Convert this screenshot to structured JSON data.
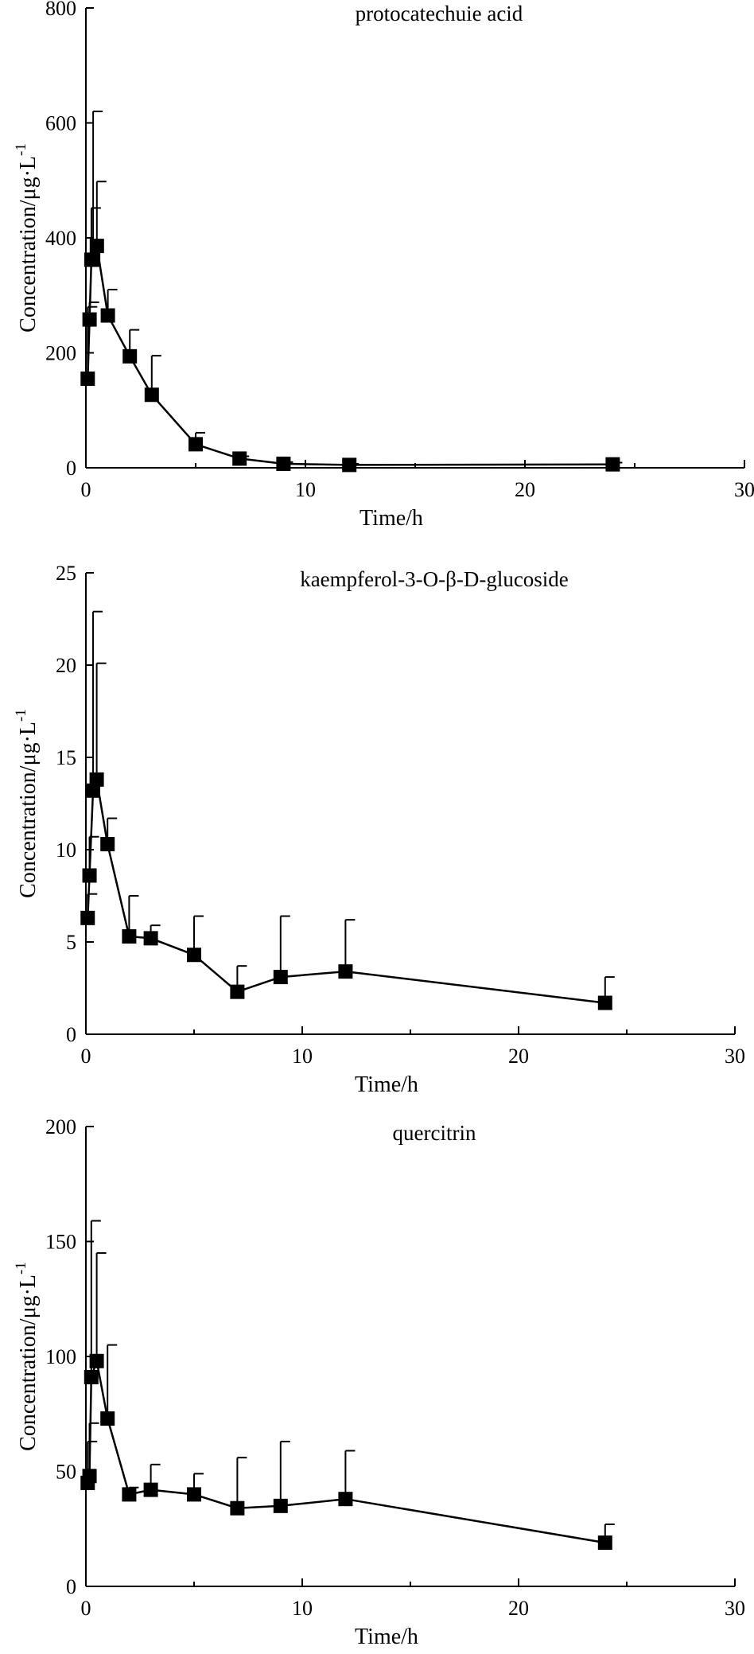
{
  "chart_data": [
    {
      "type": "line",
      "title": "protocatechuie acid",
      "xlabel": "Time/h",
      "ylabel": "Concentration/μg·L",
      "ylabel_sup": "-1",
      "xlim": [
        0,
        30
      ],
      "ylim": [
        0,
        800
      ],
      "x_ticks": [
        0,
        10,
        20,
        30
      ],
      "y_ticks": [
        0,
        200,
        400,
        600,
        800
      ],
      "x_tick_labels": [
        "0",
        "10",
        "20",
        "30"
      ],
      "y_tick_labels": [
        "0",
        "200",
        "400",
        "600",
        "800"
      ],
      "x": [
        0.083,
        0.167,
        0.25,
        0.33,
        0.5,
        1,
        2,
        3,
        5,
        7,
        9,
        12,
        24
      ],
      "y": [
        155,
        258,
        362,
        362,
        386,
        265,
        194,
        127,
        41,
        16,
        7,
        5,
        6
      ],
      "error": [
        125,
        30,
        90,
        258,
        112,
        45,
        46,
        68,
        20,
        4,
        3,
        2,
        3
      ]
    },
    {
      "type": "line",
      "title": "kaempferol-3-O-β-D-glucoside",
      "xlabel": "Time/h",
      "ylabel": "Concentration/μg·L",
      "ylabel_sup": "-1",
      "xlim": [
        0,
        30
      ],
      "ylim": [
        0,
        25
      ],
      "x_ticks": [
        0,
        10,
        20,
        30
      ],
      "y_ticks": [
        0,
        5,
        10,
        15,
        20,
        25
      ],
      "x_tick_labels": [
        "0",
        "10",
        "20",
        "30"
      ],
      "y_tick_labels": [
        "0",
        "5",
        "10",
        "15",
        "20",
        "25"
      ],
      "x": [
        0.083,
        0.167,
        0.33,
        0.5,
        1,
        2,
        3,
        5,
        7,
        9,
        12,
        24
      ],
      "y": [
        6.3,
        8.6,
        13.2,
        13.8,
        10.3,
        5.3,
        5.2,
        4.3,
        2.3,
        3.1,
        3.4,
        1.7
      ],
      "error": [
        1.3,
        2.1,
        9.7,
        6.3,
        1.4,
        2.2,
        0.7,
        2.1,
        1.4,
        3.3,
        2.8,
        1.4
      ]
    },
    {
      "type": "line",
      "title": "quercitrin",
      "xlabel": "Time/h",
      "ylabel": "Concentration/μg·L",
      "ylabel_sup": "-1",
      "xlim": [
        0,
        30
      ],
      "ylim": [
        0,
        200
      ],
      "x_ticks": [
        0,
        10,
        20,
        30
      ],
      "y_ticks": [
        0,
        50,
        100,
        150,
        200
      ],
      "x_tick_labels": [
        "0",
        "10",
        "20",
        "30"
      ],
      "y_tick_labels": [
        "0",
        "50",
        "100",
        "150",
        "200"
      ],
      "x": [
        0.083,
        0.167,
        0.25,
        0.5,
        1,
        2,
        3,
        5,
        7,
        9,
        12,
        24
      ],
      "y": [
        45,
        48,
        91,
        98,
        73,
        40,
        42,
        40,
        34,
        35,
        38,
        19
      ],
      "error": [
        18,
        23,
        68,
        47,
        32,
        3,
        11,
        9,
        22,
        28,
        21,
        8
      ]
    }
  ]
}
